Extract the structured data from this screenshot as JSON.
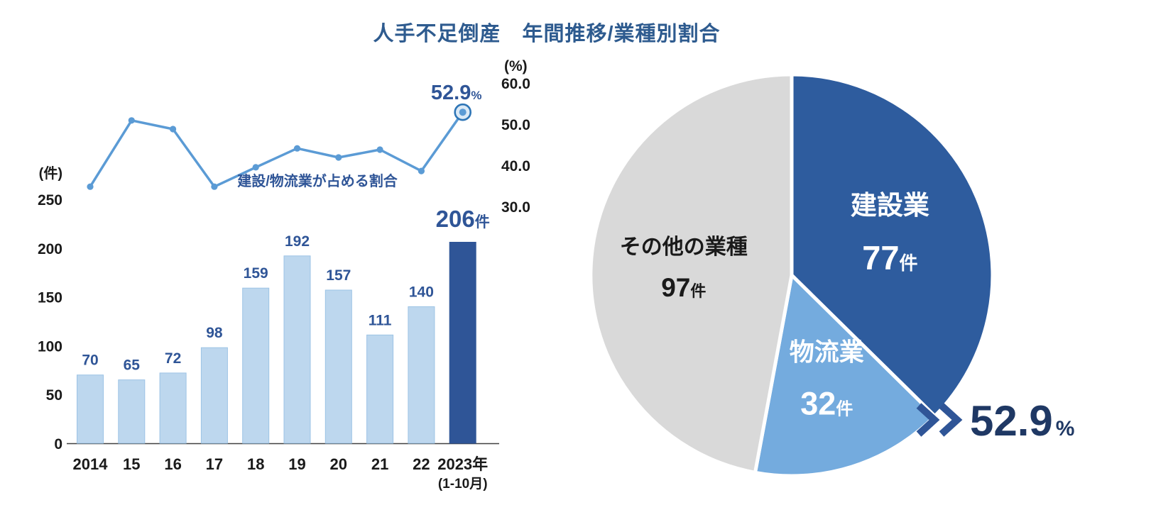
{
  "title": "人手不足倒産　年間推移/業種別割合",
  "colors": {
    "background": "#FFFFFF",
    "title": "#2E5B8F",
    "accent_dark_blue": "#2F5597",
    "line_blue": "#5B9BD5",
    "axis_text": "#1A1A1A"
  },
  "chart_data": [
    {
      "type": "bar",
      "name": "labor-shortage-bankruptcies-annual",
      "categories": [
        "2014",
        "15",
        "16",
        "17",
        "18",
        "19",
        "20",
        "21",
        "22",
        "2023年"
      ],
      "last_category_note": "(1-10月)",
      "values": [
        70,
        65,
        72,
        98,
        159,
        192,
        157,
        111,
        140,
        206
      ],
      "unit": "件",
      "ylabel": "(件)",
      "yticks": [
        0,
        50,
        100,
        150,
        200,
        250
      ],
      "ylim": [
        0,
        250
      ],
      "highlight_index": 9,
      "highlight_label": {
        "number": "206",
        "unit": "件"
      },
      "bar_color": "#BDD7EE",
      "bar_border": "#9CC3E5",
      "highlight_color": "#2F5597",
      "value_label_color": "#2F5597"
    },
    {
      "type": "line",
      "name": "construction-logistics-share",
      "label": "建設/物流業が占める割合",
      "categories": [
        "2014",
        "15",
        "16",
        "17",
        "18",
        "19",
        "20",
        "21",
        "22",
        "2023年"
      ],
      "values": [
        34.8,
        50.9,
        48.8,
        34.8,
        39.5,
        44.1,
        41.9,
        43.8,
        38.6,
        52.9
      ],
      "unit": "%",
      "ylabel": "(%)",
      "yticks": [
        30,
        40,
        50,
        60
      ],
      "ylim": [
        30,
        60
      ],
      "endpoint_label": {
        "number": "52.9",
        "unit": "%"
      },
      "line_color": "#5B9BD5",
      "label_color": "#2F5597"
    },
    {
      "type": "pie",
      "name": "industry-breakdown",
      "direction": "clockwise",
      "start_angle_deg": 0,
      "slices": [
        {
          "key": "construction",
          "label": "建設業",
          "value": 77,
          "unit": "件",
          "color": "#2E5C9E",
          "text_color": "#FFFFFF",
          "label_r_frac": 0.53,
          "name_dy": -28,
          "value_dy": 50,
          "name_font": 37,
          "value_font": 47,
          "unit_font": 26
        },
        {
          "key": "logistics",
          "label": "物流業",
          "value": 32,
          "unit": "件",
          "color": "#74ABDE",
          "text_color": "#FFFFFF",
          "label_r_frac": 0.58,
          "name_dy": -36,
          "value_dy": 40,
          "name_font": 35,
          "value_font": 45,
          "unit_font": 24
        },
        {
          "key": "others",
          "label": "その他の業種",
          "value": 97,
          "unit": "件",
          "color": "#D9D9D9",
          "text_color": "#1A1A1A",
          "label_r_frac": 0.54,
          "name_dy": -16,
          "value_dy": 44,
          "name_font": 30,
          "value_font": 37,
          "unit_font": 22
        }
      ],
      "annotation": {
        "number": "52.9",
        "unit": "%",
        "chevron_color": "#2F5597",
        "number_color": "#1F3864"
      }
    }
  ]
}
